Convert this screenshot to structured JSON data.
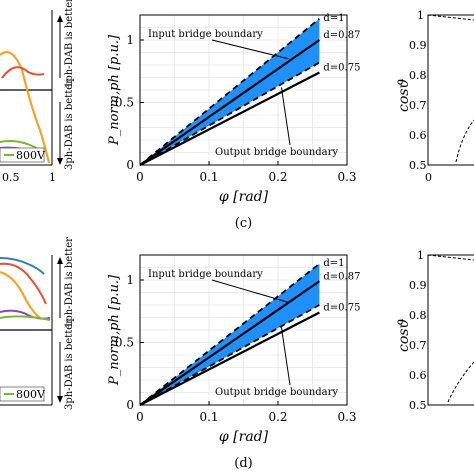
{
  "figure": {
    "left_labels": {
      "better_1ph": "1ph-DAB is better",
      "better_3ph": "3ph-DAB is better",
      "legend_800v": "800V",
      "tick_0_5": "0.5",
      "tick_1": "1"
    },
    "right_labels": {
      "ylabel": "cosϑ",
      "tick_1": "1",
      "tick_0_9": "0.9",
      "tick_0_8": "0.8",
      "tick_0_7": "0.7",
      "tick_0_6": "0.6",
      "tick_0_5": "0.5",
      "tick_x0": "0"
    },
    "colors": {
      "shade": "#1e90ff",
      "left_orange": "#f4a524",
      "left_red": "#e8502e",
      "left_blue": "#2e7dbf",
      "left_purple": "#8e44ad",
      "left_green": "#7cb82f"
    }
  },
  "chart_data": [
    {
      "panel": "(c)",
      "type": "line",
      "xlabel": "φ [rad]",
      "ylabel": "P_norm,ph [p.u.]",
      "xlim": [
        0,
        0.3
      ],
      "ylim": [
        0,
        1.2
      ],
      "xticks": [
        "0",
        "0.1",
        "0.2",
        "0.3"
      ],
      "yticks": [
        "0",
        "0.5",
        "1"
      ],
      "grid": true,
      "shaded_region": {
        "x": [
          0,
          0.26
        ],
        "upper_y": [
          0,
          1.17
        ],
        "lower_y": [
          0,
          0.82
        ]
      },
      "series": [
        {
          "name": "d=1",
          "style": "dashed",
          "x": [
            0,
            0.26
          ],
          "y": [
            0,
            1.17
          ]
        },
        {
          "name": "d=0.87",
          "style": "solid",
          "x": [
            0,
            0.26
          ],
          "y": [
            0,
            1.0
          ]
        },
        {
          "name": "d=0.75",
          "style": "solid",
          "x": [
            0,
            0.26
          ],
          "y": [
            0,
            0.74
          ]
        },
        {
          "name": "",
          "style": "dashed",
          "x": [
            0,
            0.26
          ],
          "y": [
            0,
            0.82
          ]
        }
      ],
      "annotations": [
        "Input bridge boundary",
        "Output bridge boundary"
      ]
    },
    {
      "panel": "(d)",
      "type": "line",
      "xlabel": "φ [rad]",
      "ylabel": "P_norm,ph [p.u.]",
      "xlim": [
        0,
        0.3
      ],
      "ylim": [
        0,
        1.2
      ],
      "xticks": [
        "0",
        "0.1",
        "0.2",
        "0.3"
      ],
      "yticks": [
        "0",
        "0.5",
        "1"
      ],
      "grid": true,
      "shaded_region": {
        "x": [
          0,
          0.26
        ],
        "upper_y": [
          0,
          1.13
        ],
        "lower_y": [
          0,
          0.8
        ]
      },
      "series": [
        {
          "name": "d=1",
          "style": "dashed",
          "x": [
            0,
            0.26
          ],
          "y": [
            0,
            1.13
          ]
        },
        {
          "name": "d=0.87",
          "style": "solid",
          "x": [
            0,
            0.26
          ],
          "y": [
            0,
            0.99
          ]
        },
        {
          "name": "d=0.75",
          "style": "solid",
          "x": [
            0,
            0.26
          ],
          "y": [
            0,
            0.74
          ]
        },
        {
          "name": "",
          "style": "dashed",
          "x": [
            0,
            0.26
          ],
          "y": [
            0,
            0.8
          ]
        }
      ],
      "annotations": [
        "Input bridge boundary",
        "Output bridge boundary"
      ]
    }
  ]
}
